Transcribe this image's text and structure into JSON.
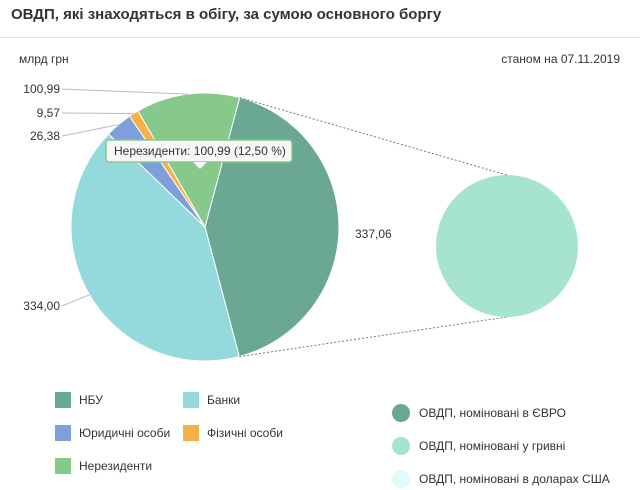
{
  "header": {
    "title": "ОВДП, які знаходяться в обігу, за сумою основного боргу",
    "unit": "млрд грн",
    "date": "станом на 07.11.2019"
  },
  "chart_data": {
    "type": "pie",
    "title": "ОВДП, які знаходяться в обігу, за сумою основного боргу",
    "unit": "млрд грн",
    "slices": [
      {
        "name": "НБУ",
        "value": 337.06,
        "label": "337,06",
        "color": "#6aa893"
      },
      {
        "name": "Банки",
        "value": 334.0,
        "label": "334,00",
        "color": "#94d9dc"
      },
      {
        "name": "Юридичні особи",
        "value": 26.38,
        "label": "26,38",
        "color": "#7e9fd9"
      },
      {
        "name": "Фізичні особи",
        "value": 9.57,
        "label": "9,57",
        "color": "#f7b14a"
      },
      {
        "name": "Нерезиденти",
        "value": 100.99,
        "label": "100,99",
        "color": "#86c98a"
      }
    ],
    "tooltip": "Нерезиденти: 100,99 (12,50 %)",
    "drilldown": {
      "source": "Нерезиденти",
      "slices": [
        {
          "name": "ОВДП, номіновані в ЄВРО",
          "color": "#6aa893"
        },
        {
          "name": "ОВДП, номіновані у гривні",
          "value": 100.99,
          "color": "#a6e4d1"
        },
        {
          "name": "ОВДП, номіновані в доларах США",
          "color": "#e0fbfb"
        }
      ]
    },
    "legend": [
      {
        "label": "НБУ",
        "color": "#6aa893"
      },
      {
        "label": "Банки",
        "color": "#94d9dc"
      },
      {
        "label": "Юридичні особи",
        "color": "#7e9fd9"
      },
      {
        "label": "Фізичні особи",
        "color": "#f7b14a"
      },
      {
        "label": "Нерезиденти",
        "color": "#86c98a"
      }
    ],
    "legend2": [
      {
        "label": "ОВДП, номіновані в ЄВРО",
        "color": "#6aa893"
      },
      {
        "label": "ОВДП, номіновані у гривні",
        "color": "#a6e4d1"
      },
      {
        "label": "ОВДП, номіновані в доларах США",
        "color": "#e0fbfb"
      }
    ]
  }
}
